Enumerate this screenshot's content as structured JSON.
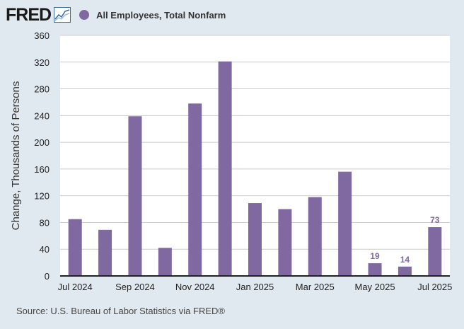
{
  "brand": {
    "logo_text": "FRED",
    "logo_icon": "fred-line-chart-icon"
  },
  "legend": {
    "label": "All Employees, Total Nonfarm",
    "color": "#8068a0"
  },
  "source": "Source: U.S. Bureau of Labor Statistics via FRED®",
  "chart_data": {
    "type": "bar",
    "title": "",
    "ylabel": "Change, Thousands of Persons",
    "xlabel": "",
    "ylim": [
      0,
      360
    ],
    "yticks": [
      0,
      40,
      80,
      120,
      160,
      200,
      240,
      280,
      320,
      360
    ],
    "grid": true,
    "categories": [
      "Jul 2024",
      "Aug 2024",
      "Sep 2024",
      "Oct 2024",
      "Nov 2024",
      "Dec 2024",
      "Jan 2025",
      "Feb 2025",
      "Mar 2025",
      "Apr 2025",
      "May 2025",
      "Jun 2025",
      "Jul 2025"
    ],
    "xtick_labels": [
      "Jul 2024",
      "Sep 2024",
      "Nov 2024",
      "Jan 2025",
      "Mar 2025",
      "May 2025",
      "Jul 2025"
    ],
    "series": [
      {
        "name": "All Employees, Total Nonfarm",
        "values": [
          85,
          69,
          239,
          42,
          258,
          321,
          109,
          100,
          118,
          156,
          19,
          14,
          73
        ],
        "data_labels": {
          "10": "19",
          "11": "14",
          "12": "73"
        }
      }
    ],
    "colors": {
      "bar": "#8068a0",
      "data_label": "#8068a0",
      "plot_bg": "#ffffff",
      "grid": "#cccccc",
      "axis": "#222222"
    }
  }
}
